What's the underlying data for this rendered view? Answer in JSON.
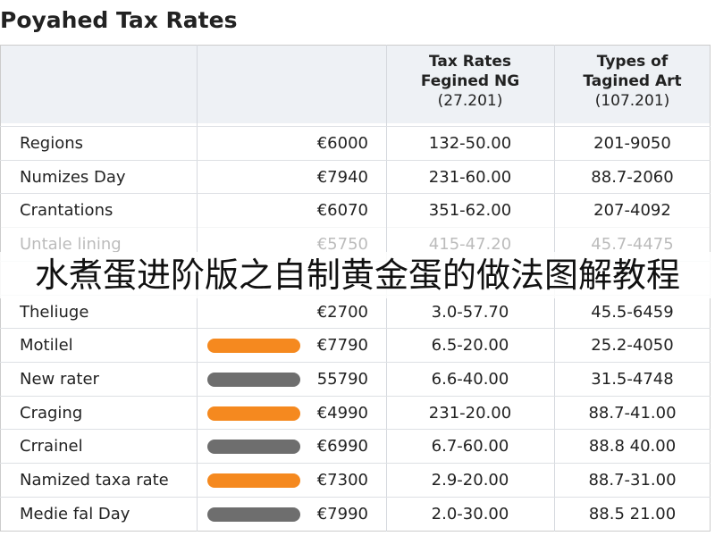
{
  "header": {
    "title": "Poyahed Tax Rates"
  },
  "table": {
    "columns": [
      [
        "Tax Rates",
        "Fegined NG",
        "(27.201)"
      ],
      [
        "Types of",
        "Tagined Art",
        "(107.201)"
      ]
    ],
    "rows": [
      {
        "name": "Regions",
        "amount": "€6000",
        "rate": "132-50.00",
        "type": "201-9050"
      },
      {
        "name": "Numizes Day",
        "amount": "€7940",
        "rate": "231-60.00",
        "type": "88.7-2060"
      },
      {
        "name": "Crantations",
        "amount": "€6070",
        "rate": "351-62.00",
        "type": "207-4092"
      },
      {
        "name": "Untale lining",
        "amount": "€5750",
        "rate": "415-47.20",
        "type": "45.7-4475",
        "faded": true
      },
      {
        "hidden": true
      },
      {
        "name": "Theliuge",
        "amount": "€2700",
        "rate": "3.0-57.70",
        "type": "45.5-6459"
      },
      {
        "name": "Motilel",
        "amount": "€7790",
        "rate": "6.5-20.00",
        "type": "25.2-4050",
        "pill": "#f5891f"
      },
      {
        "name": "New rater",
        "amount": "55790",
        "rate": "6.6-40.00",
        "type": "31.5-4748",
        "pill": "#6e6e6e"
      },
      {
        "name": "Craging",
        "amount": "€4990",
        "rate": "231-20.00",
        "type": "88.7-41.00",
        "pill": "#f5891f"
      },
      {
        "name": "Crrainel",
        "amount": "€6990",
        "rate": "6.7-60.00",
        "type": "88.8 40.00",
        "pill": "#6e6e6e"
      },
      {
        "name": "Namized taxa rate",
        "amount": "€7300",
        "rate": "2.9-20.00",
        "type": "88.7-31.00",
        "pill": "#f5891f"
      },
      {
        "name": "Medie fal Day",
        "amount": "€7990",
        "rate": "2.0-30.00",
        "type": "88.5 21.00",
        "pill": "#6e6e6e"
      }
    ]
  },
  "overlay": {
    "text": "水煮蛋进阶版之自制黄金蛋的做法图解教程"
  }
}
